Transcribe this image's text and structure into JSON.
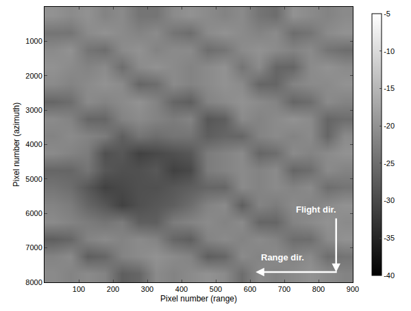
{
  "chart_data": {
    "type": "heatmap",
    "xlabel": "Pixel number (range)",
    "ylabel": "Pixel number (azimuth)",
    "x": [
      25,
      75,
      125,
      175,
      225,
      275,
      325,
      375,
      425,
      475,
      525,
      575,
      625,
      675,
      725,
      775,
      825,
      875
    ],
    "y": [
      250,
      750,
      1250,
      1750,
      2250,
      2750,
      3250,
      3750,
      4250,
      4750,
      5250,
      5750,
      6250,
      6750,
      7250,
      7750
    ],
    "z": [
      [
        -20,
        -21,
        -20,
        -22,
        -21,
        -24,
        -24,
        -21,
        -20,
        -21,
        -22,
        -21,
        -24,
        -25,
        -20,
        -21,
        -22,
        -21
      ],
      [
        -24,
        -24,
        -21,
        -20,
        -21,
        -22,
        -21,
        -24,
        -25,
        -21,
        -20,
        -21,
        -22,
        -21,
        -25,
        -24,
        -21,
        -20
      ],
      [
        -21,
        -20,
        -24,
        -25,
        -21,
        -20,
        -22,
        -21,
        -21,
        -25,
        -24,
        -21,
        -20,
        -21,
        -22,
        -21,
        -24,
        -25
      ],
      [
        -20,
        -21,
        -22,
        -21,
        -25,
        -21,
        -20,
        -21,
        -22,
        -21,
        -20,
        -24,
        -21,
        -26,
        -26,
        -21,
        -20,
        -21
      ],
      [
        -21,
        -22,
        -21,
        -20,
        -21,
        -26,
        -25,
        -21,
        -22,
        -21,
        -20,
        -21,
        -26,
        -26,
        -22,
        -21,
        -21,
        -20
      ],
      [
        -26,
        -25,
        -21,
        -22,
        -21,
        -20,
        -22,
        -26,
        -27,
        -22,
        -21,
        -20,
        -21,
        -22,
        -26,
        -25,
        -21,
        -22
      ],
      [
        -21,
        -22,
        -26,
        -26,
        -22,
        -21,
        -22,
        -23,
        -22,
        -28,
        -27,
        -21,
        -22,
        -21,
        -20,
        -21,
        -26,
        -25
      ],
      [
        -22,
        -21,
        -22,
        -23,
        -27,
        -24,
        -25,
        -24,
        -24,
        -27,
        -26,
        -26,
        -22,
        -21,
        -22,
        -21,
        -26,
        -21
      ],
      [
        -21,
        -22,
        -23,
        -29,
        -28,
        -31,
        -30,
        -29,
        -28,
        -23,
        -22,
        -21,
        -26,
        -25,
        -21,
        -22,
        -21,
        -20
      ],
      [
        -26,
        -26,
        -24,
        -28,
        -29,
        -29,
        -28,
        -31,
        -30,
        -23,
        -22,
        -21,
        -22,
        -21,
        -26,
        -25,
        -21,
        -22
      ],
      [
        -24,
        -25,
        -28,
        -31,
        -30,
        -29,
        -29,
        -28,
        -27,
        -26,
        -26,
        -21,
        -22,
        -21,
        -22,
        -21,
        -25,
        -24
      ],
      [
        -22,
        -23,
        -26,
        -28,
        -31,
        -29,
        -28,
        -27,
        -25,
        -22,
        -21,
        -27,
        -22,
        -23,
        -21,
        -22,
        -21,
        -20
      ],
      [
        -21,
        -22,
        -23,
        -24,
        -23,
        -27,
        -27,
        -23,
        -22,
        -21,
        -22,
        -21,
        -26,
        -26,
        -22,
        -21,
        -20,
        -21
      ],
      [
        -27,
        -26,
        -22,
        -21,
        -22,
        -21,
        -22,
        -26,
        -27,
        -22,
        -21,
        -22,
        -21,
        -22,
        -25,
        -25,
        -21,
        -20
      ],
      [
        -22,
        -21,
        -27,
        -26,
        -22,
        -21,
        -20,
        -21,
        -22,
        -27,
        -26,
        -21,
        -22,
        -21,
        -22,
        -21,
        -25,
        -24
      ],
      [
        -21,
        -22,
        -21,
        -22,
        -27,
        -26,
        -21,
        -22,
        -21,
        -20,
        -21,
        -25,
        -21,
        -22,
        -21,
        -20,
        -21,
        -22
      ]
    ],
    "xlim": [
      0,
      900
    ],
    "ylim": [
      8000,
      0
    ],
    "xticks": [
      100,
      200,
      300,
      400,
      500,
      600,
      700,
      800,
      900
    ],
    "yticks": [
      1000,
      2000,
      3000,
      4000,
      5000,
      6000,
      7000,
      8000
    ],
    "color_range": [
      -40,
      -5
    ],
    "color_ticks": [
      -40,
      -35,
      -30,
      -25,
      -20,
      -15,
      -10,
      -5
    ],
    "grid": false,
    "annotations": [
      {
        "text": "Flight dir."
      },
      {
        "text": "Range dir."
      }
    ]
  }
}
